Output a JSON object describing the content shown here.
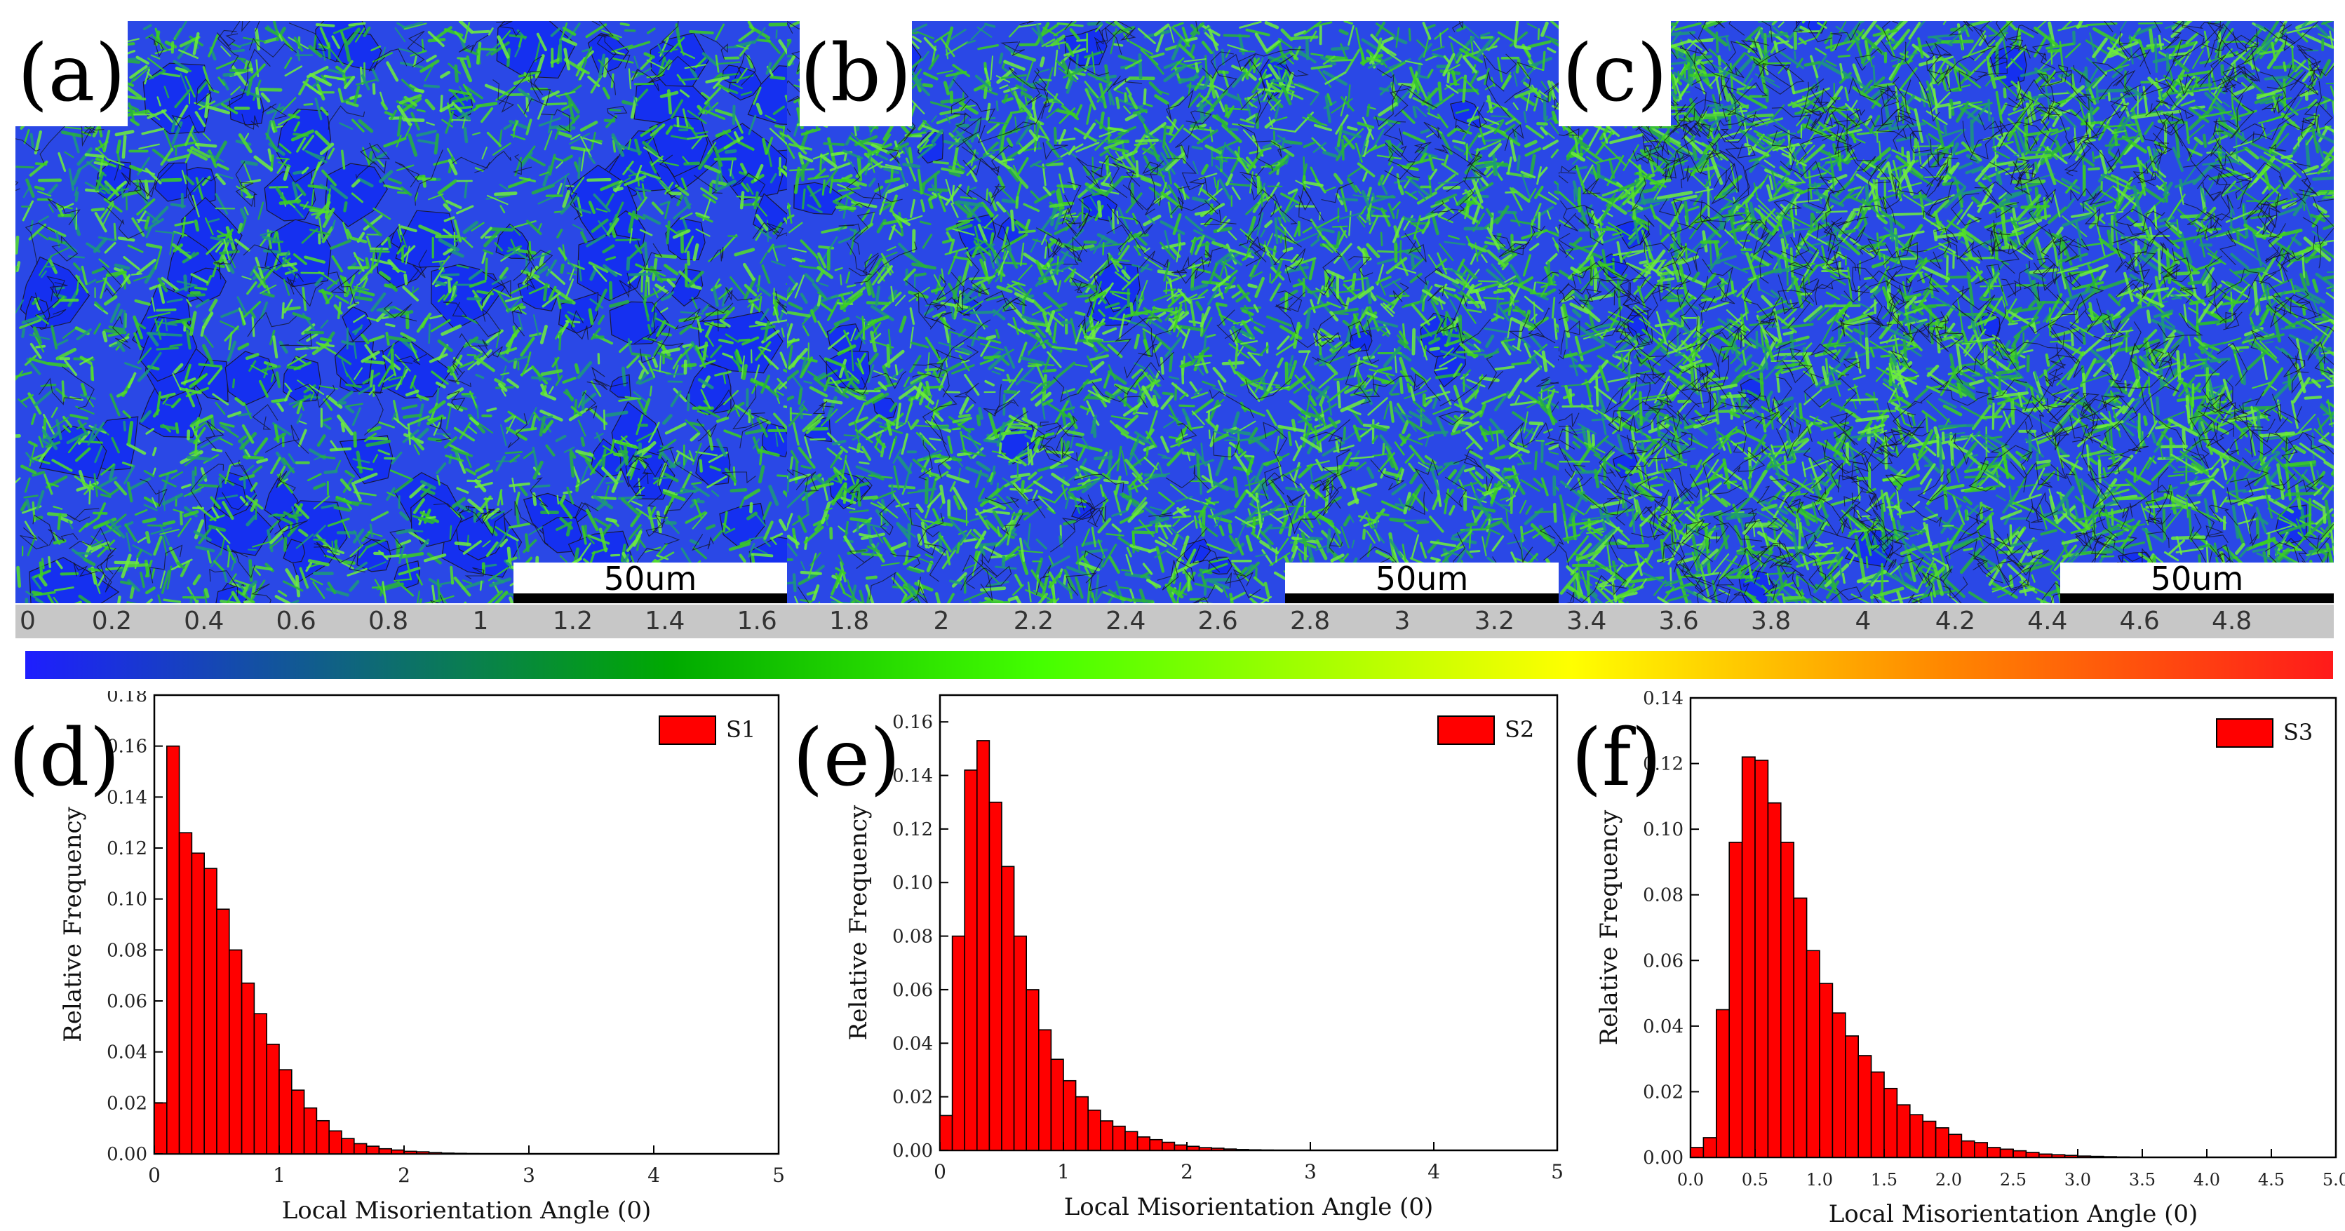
{
  "maps": [
    {
      "label": "(a)",
      "scale_bar": "50um"
    },
    {
      "label": "(b)",
      "scale_bar": "50um"
    },
    {
      "label": "(c)",
      "scale_bar": "50um"
    }
  ],
  "colorbar": {
    "ticks": [
      "0",
      "0.2",
      "0.4",
      "0.6",
      "0.8",
      "1",
      "1.2",
      "1.4",
      "1.6",
      "1.8",
      "2",
      "2.2",
      "2.4",
      "2.6",
      "2.8",
      "3",
      "3.2",
      "3.4",
      "3.6",
      "3.8",
      "4",
      "4.2",
      "4.4",
      "4.6",
      "4.8"
    ],
    "colors": [
      "#1e1eff",
      "#00aa00",
      "#44ff00",
      "#ffff00",
      "#ff8800",
      "#ff1a1a"
    ]
  },
  "chart_data": [
    {
      "type": "bar",
      "panel_label": "(d)",
      "series_name": "S1",
      "xlabel": "Local Misorientation Angle (0)",
      "ylabel": "Relative Frequency",
      "xlim": [
        0,
        5
      ],
      "ylim": [
        0,
        0.18
      ],
      "bin_width": 0.1,
      "xticks": [
        "0",
        "1",
        "2",
        "3",
        "4",
        "5"
      ],
      "yticks": [
        "0.00",
        "0.02",
        "0.04",
        "0.06",
        "0.08",
        "0.10",
        "0.12",
        "0.14",
        "0.16",
        "0.18"
      ],
      "values": [
        0.02,
        0.16,
        0.126,
        0.118,
        0.112,
        0.096,
        0.08,
        0.067,
        0.055,
        0.043,
        0.033,
        0.025,
        0.018,
        0.013,
        0.009,
        0.006,
        0.004,
        0.003,
        0.002,
        0.0015,
        0.001,
        0.0008,
        0.0005,
        0.0003,
        0.0002,
        0.0001
      ],
      "bar_color": "#ff0000"
    },
    {
      "type": "bar",
      "panel_label": "(e)",
      "series_name": "S2",
      "xlabel": "Local Misorientation Angle (0)",
      "ylabel": "Relative Frequency",
      "xlim": [
        0,
        5
      ],
      "ylim": [
        0,
        0.17
      ],
      "bin_width": 0.1,
      "xticks": [
        "0",
        "1",
        "2",
        "3",
        "4",
        "5"
      ],
      "yticks": [
        "0.00",
        "0.02",
        "0.04",
        "0.06",
        "0.08",
        "0.10",
        "0.12",
        "0.14",
        "0.16"
      ],
      "values": [
        0.013,
        0.08,
        0.142,
        0.153,
        0.13,
        0.106,
        0.08,
        0.06,
        0.045,
        0.034,
        0.026,
        0.02,
        0.015,
        0.011,
        0.009,
        0.007,
        0.005,
        0.004,
        0.003,
        0.002,
        0.0015,
        0.001,
        0.0008,
        0.0005,
        0.0003,
        0.0002,
        0.0001
      ],
      "bar_color": "#ff0000"
    },
    {
      "type": "bar",
      "panel_label": "(f)",
      "series_name": "S3",
      "xlabel": "Local Misorientation Angle (0)",
      "ylabel": "Relative Frequency",
      "xlim": [
        0,
        5
      ],
      "ylim": [
        0,
        0.14
      ],
      "bin_width": 0.1,
      "xticks": [
        "0.0",
        "0.5",
        "1.0",
        "1.5",
        "2.0",
        "2.5",
        "3.0",
        "3.5",
        "4.0",
        "4.5",
        "5.0"
      ],
      "yticks": [
        "0.00",
        "0.02",
        "0.04",
        "0.06",
        "0.08",
        "0.10",
        "0.12",
        "0.14"
      ],
      "values": [
        0.003,
        0.006,
        0.045,
        0.096,
        0.122,
        0.121,
        0.108,
        0.096,
        0.079,
        0.063,
        0.053,
        0.044,
        0.037,
        0.031,
        0.026,
        0.021,
        0.016,
        0.013,
        0.011,
        0.009,
        0.007,
        0.005,
        0.0045,
        0.003,
        0.0025,
        0.002,
        0.0015,
        0.001,
        0.0008,
        0.0006,
        0.0004,
        0.0003,
        0.0002,
        0.0001
      ],
      "bar_color": "#ff0000"
    }
  ]
}
